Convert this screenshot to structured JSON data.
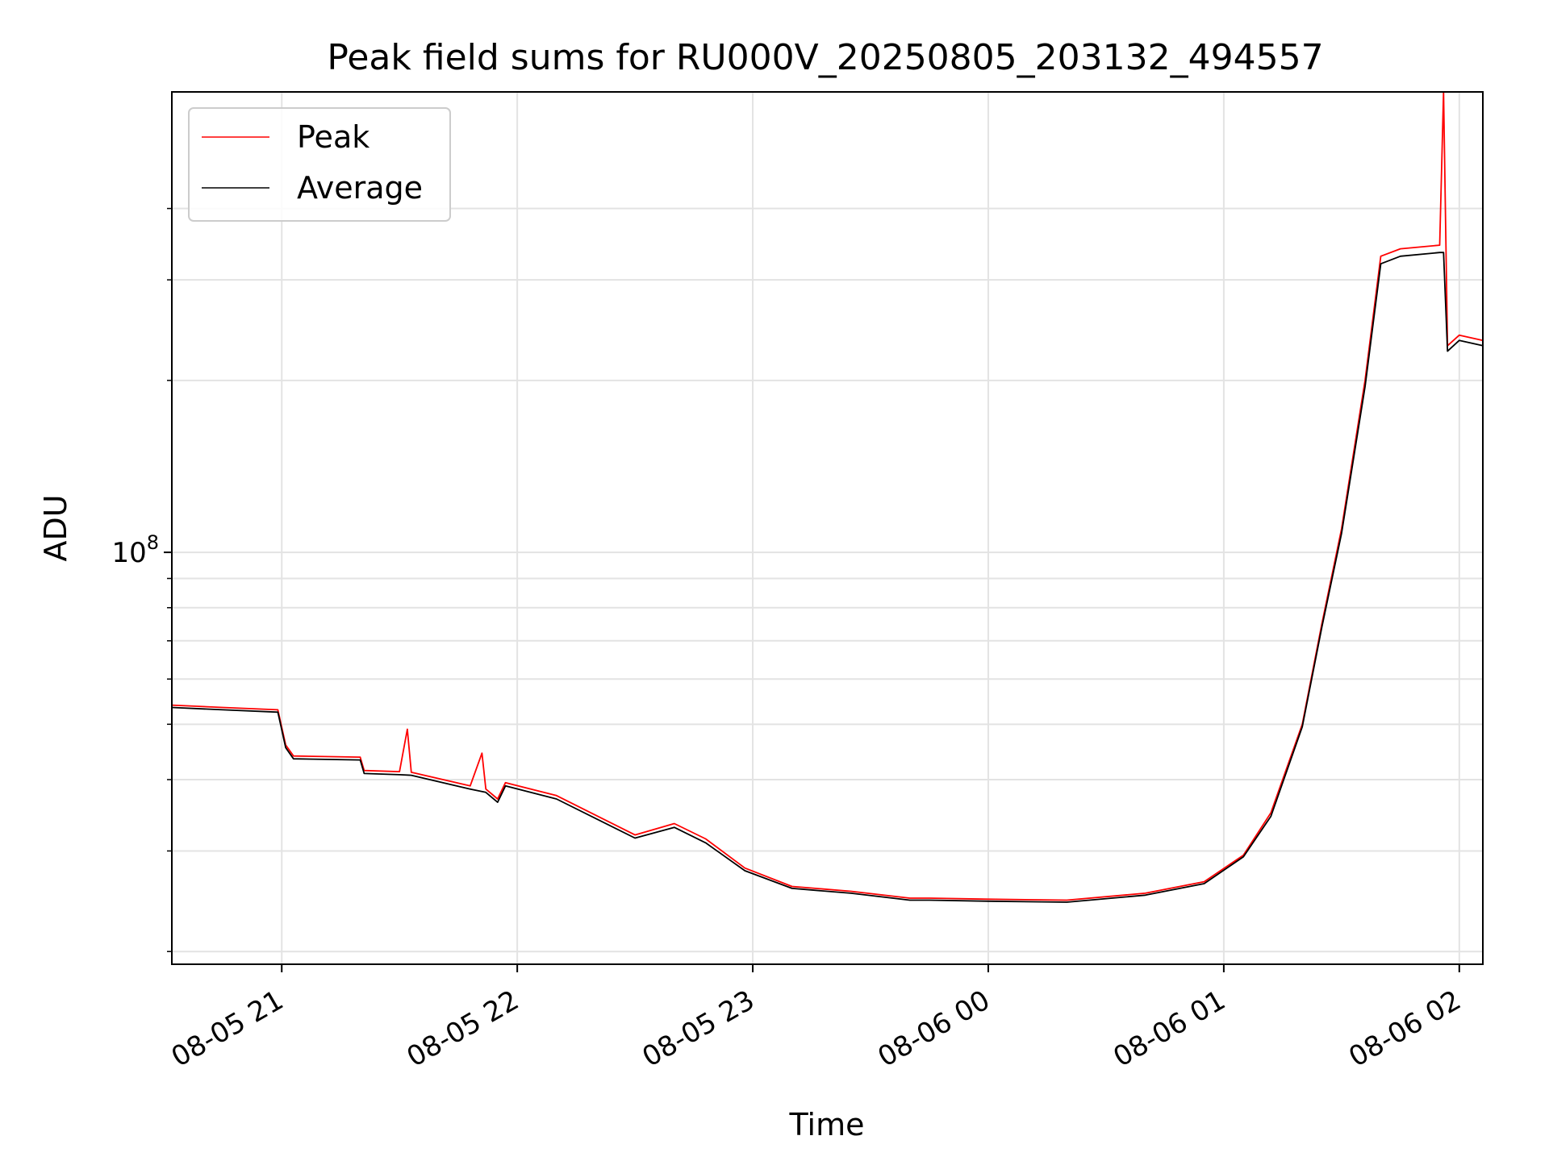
{
  "chart_data": {
    "type": "line",
    "title": "Peak field sums for RU000V_20250805_203132_494557",
    "xlabel": "Time",
    "ylabel": "ADU",
    "y_scale": "log",
    "ylim": [
      19000000,
      640000000
    ],
    "xlim": [
      "2025-08-05 20:32",
      "2025-08-06 02:06"
    ],
    "grid": true,
    "legend": {
      "placement": "top-left"
    },
    "x_ticks": [
      {
        "value": "2025-08-05 21:00",
        "label": "08-05 21"
      },
      {
        "value": "2025-08-05 22:00",
        "label": "08-05 22"
      },
      {
        "value": "2025-08-05 23:00",
        "label": "08-05 23"
      },
      {
        "value": "2025-08-06 00:00",
        "label": "08-06 00"
      },
      {
        "value": "2025-08-06 01:00",
        "label": "08-06 01"
      },
      {
        "value": "2025-08-06 02:00",
        "label": "08-06 02"
      }
    ],
    "y_major_ticks": [
      {
        "value": 100000000,
        "label_base": "10",
        "label_exp": "8"
      }
    ],
    "y_minor_ticks": [
      20000000,
      30000000,
      40000000,
      50000000,
      60000000,
      70000000,
      80000000,
      90000000,
      200000000,
      300000000,
      400000000
    ],
    "series": [
      {
        "name": "Peak",
        "color": "#ff0000",
        "points": [
          [
            "2025-08-05 20:32",
            54000000
          ],
          [
            "2025-08-05 20:45",
            53500000
          ],
          [
            "2025-08-05 20:59",
            53000000
          ],
          [
            "2025-08-05 21:01",
            46000000
          ],
          [
            "2025-08-05 21:03",
            44000000
          ],
          [
            "2025-08-05 21:20",
            43800000
          ],
          [
            "2025-08-05 21:21",
            41500000
          ],
          [
            "2025-08-05 21:30",
            41300000
          ],
          [
            "2025-08-05 21:32",
            49000000
          ],
          [
            "2025-08-05 21:33",
            41200000
          ],
          [
            "2025-08-05 21:48",
            39000000
          ],
          [
            "2025-08-05 21:51",
            44500000
          ],
          [
            "2025-08-05 21:52",
            38500000
          ],
          [
            "2025-08-05 21:55",
            37000000
          ],
          [
            "2025-08-05 21:57",
            39500000
          ],
          [
            "2025-08-05 22:10",
            37500000
          ],
          [
            "2025-08-05 22:30",
            32000000
          ],
          [
            "2025-08-05 22:40",
            33500000
          ],
          [
            "2025-08-05 22:48",
            31500000
          ],
          [
            "2025-08-05 22:58",
            28000000
          ],
          [
            "2025-08-05 23:10",
            26000000
          ],
          [
            "2025-08-05 23:25",
            25500000
          ],
          [
            "2025-08-05 23:40",
            24800000
          ],
          [
            "2025-08-05 23:45",
            24800000
          ],
          [
            "2025-08-06 00:00",
            24700000
          ],
          [
            "2025-08-06 00:20",
            24600000
          ],
          [
            "2025-08-06 00:40",
            25300000
          ],
          [
            "2025-08-06 00:55",
            26500000
          ],
          [
            "2025-08-06 01:05",
            29500000
          ],
          [
            "2025-08-06 01:12",
            35000000
          ],
          [
            "2025-08-06 01:20",
            50000000
          ],
          [
            "2025-08-06 01:25",
            75000000
          ],
          [
            "2025-08-06 01:30",
            110000000
          ],
          [
            "2025-08-06 01:36",
            200000000
          ],
          [
            "2025-08-06 01:40",
            330000000
          ],
          [
            "2025-08-06 01:45",
            340000000
          ],
          [
            "2025-08-06 01:55",
            345000000
          ],
          [
            "2025-08-06 01:56",
            640000000
          ],
          [
            "2025-08-06 01:57",
            230000000
          ],
          [
            "2025-08-06 02:00",
            240000000
          ],
          [
            "2025-08-06 02:06",
            235000000
          ]
        ]
      },
      {
        "name": "Average",
        "color": "#000000",
        "points": [
          [
            "2025-08-05 20:32",
            53500000
          ],
          [
            "2025-08-05 20:45",
            53000000
          ],
          [
            "2025-08-05 20:59",
            52500000
          ],
          [
            "2025-08-05 21:01",
            45500000
          ],
          [
            "2025-08-05 21:03",
            43500000
          ],
          [
            "2025-08-05 21:20",
            43300000
          ],
          [
            "2025-08-05 21:21",
            41000000
          ],
          [
            "2025-08-05 21:30",
            40800000
          ],
          [
            "2025-08-05 21:33",
            40700000
          ],
          [
            "2025-08-05 21:48",
            38500000
          ],
          [
            "2025-08-05 21:52",
            38000000
          ],
          [
            "2025-08-05 21:55",
            36500000
          ],
          [
            "2025-08-05 21:57",
            39000000
          ],
          [
            "2025-08-05 22:10",
            37000000
          ],
          [
            "2025-08-05 22:30",
            31600000
          ],
          [
            "2025-08-05 22:40",
            33000000
          ],
          [
            "2025-08-05 22:48",
            31000000
          ],
          [
            "2025-08-05 22:58",
            27700000
          ],
          [
            "2025-08-05 23:10",
            25800000
          ],
          [
            "2025-08-05 23:25",
            25300000
          ],
          [
            "2025-08-05 23:40",
            24600000
          ],
          [
            "2025-08-05 23:45",
            24600000
          ],
          [
            "2025-08-06 00:00",
            24500000
          ],
          [
            "2025-08-06 00:20",
            24400000
          ],
          [
            "2025-08-06 00:40",
            25100000
          ],
          [
            "2025-08-06 00:55",
            26300000
          ],
          [
            "2025-08-06 01:05",
            29300000
          ],
          [
            "2025-08-06 01:12",
            34500000
          ],
          [
            "2025-08-06 01:20",
            49500000
          ],
          [
            "2025-08-06 01:25",
            74000000
          ],
          [
            "2025-08-06 01:30",
            108000000
          ],
          [
            "2025-08-06 01:36",
            195000000
          ],
          [
            "2025-08-06 01:40",
            320000000
          ],
          [
            "2025-08-06 01:45",
            330000000
          ],
          [
            "2025-08-06 01:55",
            335000000
          ],
          [
            "2025-08-06 01:56",
            335000000
          ],
          [
            "2025-08-06 01:57",
            225000000
          ],
          [
            "2025-08-06 02:00",
            235000000
          ],
          [
            "2025-08-06 02:06",
            230000000
          ]
        ]
      }
    ]
  }
}
